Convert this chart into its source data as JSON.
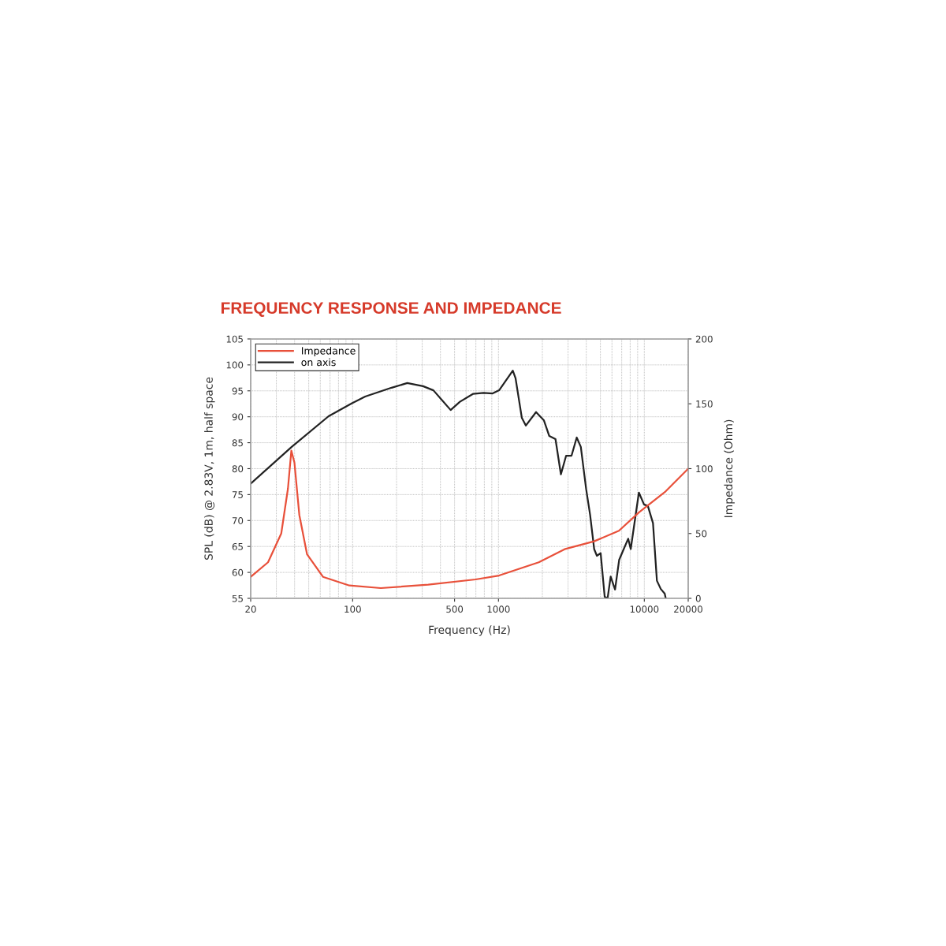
{
  "chart_data": {
    "type": "line",
    "title": "FREQUENCY RESPONSE AND IMPEDANCE",
    "xlabel": "Frequency (Hz)",
    "ylabel": "SPL (dB) @ 2.83V, 1m, half space",
    "y2label": "Impedance (Ohm)",
    "log": "x",
    "grid": true,
    "legend": "top left",
    "xlim": [
      20,
      20000
    ],
    "xticks": [
      20,
      100,
      500,
      1000,
      10000,
      20000
    ],
    "ylim": [
      55,
      105
    ],
    "yticks": [
      55,
      60,
      65,
      70,
      75,
      80,
      85,
      90,
      95,
      100,
      105
    ],
    "y2lim": [
      0,
      200
    ],
    "y2ticks": [
      0,
      50,
      100,
      150,
      200
    ],
    "series": [
      {
        "name": "Impedance",
        "color": "#e8503a",
        "axis": "y2",
        "x": [
          20,
          26.3,
          32.4,
          36.0,
          38.0,
          39.9,
          43.1,
          48.7,
          62.6,
          95,
          156,
          330,
          697,
          1010,
          1890,
          2840,
          4530,
          6700,
          9200,
          14000,
          20000
        ],
        "values": [
          16.6,
          27.8,
          50,
          84.5,
          113.9,
          104.7,
          64.3,
          33.9,
          16.6,
          9.9,
          7.9,
          10.5,
          14.6,
          17.6,
          27.8,
          37.9,
          44.0,
          52.1,
          66.3,
          82.5,
          100
        ]
      },
      {
        "name": "on axis",
        "color": "#222222",
        "x": [
          20,
          38.2,
          68.4,
          99,
          122,
          185,
          237,
          304,
          358,
          470,
          544,
          668,
          790,
          912,
          1010,
          1254,
          1310,
          1446,
          1540,
          1810,
          2050,
          2230,
          2460,
          2680,
          2910,
          3170,
          3440,
          3670,
          3990,
          4250,
          4530,
          4730,
          5020,
          5350,
          5600,
          5880,
          6300,
          6720,
          7150,
          7750,
          8070,
          9180,
          9950,
          10580,
          11470,
          12200,
          12970,
          13800,
          14000
        ],
        "values": [
          77.1,
          84.2,
          90.1,
          92.6,
          93.9,
          95.6,
          96.5,
          95.9,
          95.1,
          91.3,
          92.9,
          94.4,
          94.6,
          94.5,
          95.1,
          98.9,
          97.4,
          89.8,
          88.3,
          90.9,
          89.3,
          86.3,
          85.7,
          78.9,
          82.5,
          82.5,
          86.0,
          84.2,
          76.1,
          71.1,
          64.5,
          63.2,
          63.7,
          55.3,
          55,
          59.2,
          56.7,
          62.4,
          64.2,
          66.5,
          64.5,
          75.4,
          73.1,
          72.8,
          69.5,
          58.4,
          56.8,
          55.9,
          55.1
        ]
      }
    ]
  }
}
